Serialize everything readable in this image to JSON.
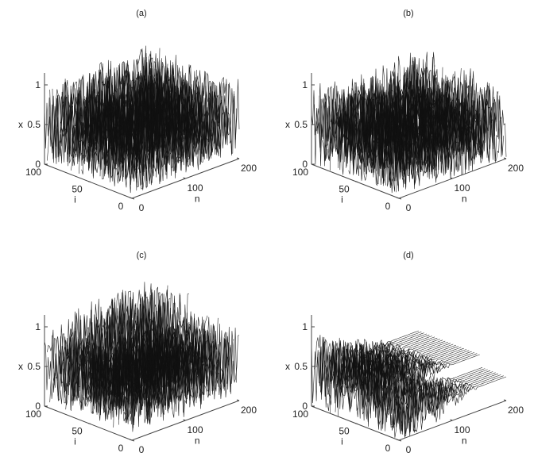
{
  "chart_data": [
    {
      "type": "line",
      "panel_label": "(a)",
      "xlabel": "n",
      "ylabel": "i",
      "zlabel": "x",
      "xlim": [
        0,
        200
      ],
      "ylim": [
        0,
        100
      ],
      "zlim": [
        0,
        1
      ],
      "xticks": [
        "0",
        "100",
        "200"
      ],
      "yticks": [
        "0",
        "50",
        "100"
      ],
      "zticks": [
        "0",
        "0.5",
        "1"
      ],
      "pattern": "chaotic",
      "value_range": [
        0.05,
        1.15
      ],
      "mean": 0.5
    },
    {
      "type": "line",
      "panel_label": "(b)",
      "xlabel": "n",
      "ylabel": "i",
      "zlabel": "x",
      "xlim": [
        0,
        200
      ],
      "ylim": [
        0,
        100
      ],
      "zlim": [
        0,
        1
      ],
      "xticks": [
        "0",
        "100",
        "200"
      ],
      "yticks": [
        "0",
        "50",
        "100"
      ],
      "zticks": [
        "0",
        "0.5",
        "1"
      ],
      "pattern": "chaotic-partial-sync",
      "value_range": [
        0.0,
        1.15
      ],
      "mean": 0.45
    },
    {
      "type": "line",
      "panel_label": "(c)",
      "xlabel": "n",
      "ylabel": "i",
      "zlabel": "x",
      "xlim": [
        0,
        200
      ],
      "ylim": [
        0,
        100
      ],
      "zlim": [
        0,
        1
      ],
      "xticks": [
        "0",
        "100",
        "200"
      ],
      "yticks": [
        "0",
        "50",
        "100"
      ],
      "zticks": [
        "0",
        "0.5",
        "1"
      ],
      "pattern": "banded-synchronization",
      "value_range": [
        0.0,
        1.1
      ],
      "mean": 0.5
    },
    {
      "type": "line",
      "panel_label": "(d)",
      "xlabel": "n",
      "ylabel": "i",
      "zlabel": "x",
      "xlim": [
        0,
        200
      ],
      "ylim": [
        0,
        100
      ],
      "zlim": [
        0,
        1
      ],
      "xticks": [
        "0",
        "100",
        "200"
      ],
      "yticks": [
        "0",
        "50",
        "100"
      ],
      "zticks": [
        "0",
        "0.5",
        "1"
      ],
      "pattern": "synchronized-decay",
      "value_range": [
        0.0,
        1.05
      ],
      "mean": 0.45
    }
  ]
}
